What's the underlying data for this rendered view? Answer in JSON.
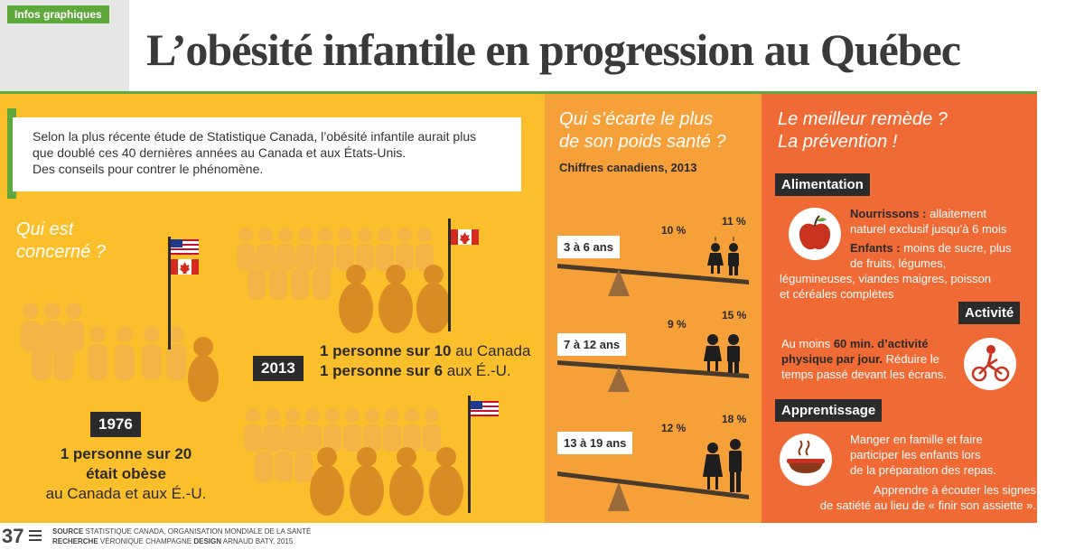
{
  "header": {
    "tag": "Infos graphiques",
    "title": "L’obésité infantile en progression au Québec"
  },
  "intro": {
    "line1": "Selon la plus récente étude de Statistique Canada, l’obésité infantile aurait plus",
    "line2": "que doublé ces 40 dernières années au Canada et aux États-Unis.",
    "line3": "Des conseils pour contrer le phénomène."
  },
  "who": {
    "title_line1": "Qui est",
    "title_line2": "concerné ?"
  },
  "y1976": {
    "year": "1976",
    "stat_line1": "1 personne sur 20",
    "stat_line2": "était obèse",
    "stat_line3": "au Canada et aux É.-U."
  },
  "y2013": {
    "year": "2013",
    "ca_bold": "1 personne sur 10",
    "ca_rest": " au Canada",
    "us_bold": "1 personne sur 6",
    "us_rest": " aux É.-U."
  },
  "middle": {
    "title_line1": "Qui s’écarte le plus",
    "title_line2": "de son poids santé ?",
    "subtitle": "Chiffres canadiens, 2013",
    "groups": [
      {
        "age": "3 à 6 ans",
        "girls": "10 %",
        "boys": "11 %"
      },
      {
        "age": "7 à 12 ans",
        "girls": "9 %",
        "boys": "15 %"
      },
      {
        "age": "13 à 19 ans",
        "girls": "12 %",
        "boys": "18 %"
      }
    ]
  },
  "right": {
    "title_line1": "Le meilleur remède ?",
    "title_line2": "La prévention !",
    "alimentation": {
      "label": "Alimentation",
      "nourrissons_bold": "Nourrissons :",
      "nourrissons_l1": " allaitement",
      "nourrissons_l2": "naturel exclusif jusqu’à 6 mois",
      "enfants_bold": "Enfants :",
      "enfants_l1": " moins de sucre, plus",
      "enfants_l2": "de fruits, légumes,",
      "enfants_l3": "légumineuses, viandes maigres, poisson",
      "enfants_l4": "et céréales complètes"
    },
    "activite": {
      "label": "Activité",
      "pre": "Au moins ",
      "bold1": "60 min. d’activité",
      "bold2": "physique par jour.",
      "rest1": " Réduire le",
      "rest2": "temps passé devant les écrans."
    },
    "apprentissage": {
      "label": "Apprentissage",
      "p1_l1": "Manger en famille et faire",
      "p1_l2": "participer les enfants lors",
      "p1_l3": "de la préparation des repas.",
      "p2_l1": "Apprendre à écouter les signes",
      "p2_l2": "de satiété au lieu de « finir son assiette »."
    }
  },
  "footer": {
    "page": "37",
    "source_label": "SOURCE",
    "source_text": " STATISTIQUE CANADA, ORGANISATION MONDIALE DE LA SANTÉ",
    "recherche_label": "RECHERCHE",
    "recherche_text": " VÉRONIQUE CHAMPAGNE ",
    "design_label": "DESIGN",
    "design_text": " ARNAUD BATY, 2015"
  },
  "colors": {
    "green": "#5fa83c",
    "yellow": "#fbbf2c",
    "orange": "#f6a03a",
    "red_orange": "#ef6a34",
    "dark": "#2b2b2b",
    "figure_light": "#f2a93a",
    "figure_dark": "#d98b25"
  },
  "icons": [
    "flag-usa-icon",
    "flag-canada-icon",
    "apple-icon",
    "bike-icon",
    "bowl-icon",
    "seesaw-icon"
  ]
}
